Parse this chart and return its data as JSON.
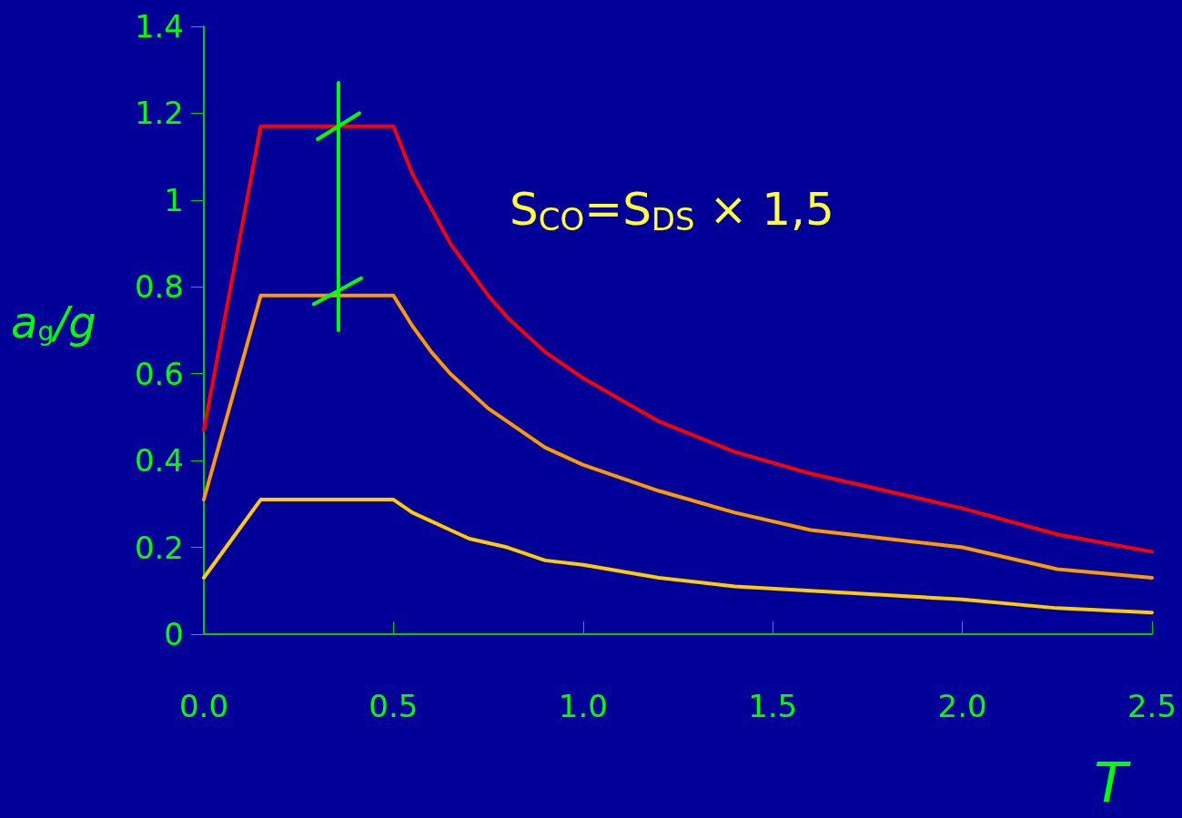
{
  "chart_data": {
    "type": "line",
    "xlabel": "T",
    "ylabel": "a$_{g}$/g",
    "annotations": [
      "S$_{CO}$=S$_{DS}$ × 1,5"
    ],
    "x": [
      0,
      0.15,
      0.5,
      0.55,
      0.6,
      0.65,
      0.7,
      0.75,
      0.8,
      0.9,
      1.0,
      1.2,
      1.4,
      1.6,
      1.8,
      2.0,
      2.25,
      2.5
    ],
    "xlim": [
      0,
      2.5
    ],
    "xticks": [
      {
        "value": 0,
        "label": "0.0"
      },
      {
        "value": 0.5,
        "label": "0.5"
      },
      {
        "value": 1,
        "label": "1.0"
      },
      {
        "value": 1.5,
        "label": "1.5"
      },
      {
        "value": 2,
        "label": "2.0"
      },
      {
        "value": 2.5,
        "label": "2.5"
      }
    ],
    "ylim": [
      0,
      1.4
    ],
    "yticks": [
      0,
      0.2,
      0.4,
      0.6,
      0.8,
      1,
      1.2,
      1.4
    ],
    "grid": false,
    "marker": "none",
    "line_style": "solid",
    "series": [
      {
        "color": "#ff0000",
        "values": [
          0.47,
          1.17,
          1.17,
          1.06,
          0.98,
          0.9,
          0.84,
          0.78,
          0.73,
          0.65,
          0.59,
          0.49,
          0.42,
          0.37,
          0.33,
          0.29,
          0.23,
          0.19
        ]
      },
      {
        "color": "#ff9900",
        "values": [
          0.31,
          0.78,
          0.78,
          0.71,
          0.65,
          0.6,
          0.56,
          0.52,
          0.49,
          0.43,
          0.39,
          0.33,
          0.28,
          0.24,
          0.22,
          0.2,
          0.15,
          0.13
        ]
      },
      {
        "color": "#ffcc00",
        "values": [
          0.13,
          0.31,
          0.31,
          0.28,
          0.26,
          0.24,
          0.22,
          0.21,
          0.2,
          0.17,
          0.16,
          0.13,
          0.11,
          0.1,
          0.09,
          0.08,
          0.06,
          0.05
        ]
      },
      {
        "color": "#00ff00",
        "x": [
          0.355,
          0.355
        ],
        "values": [
          0.7,
          1.27
        ]
      },
      {
        "color": "#00ff00",
        "x": [
          0.3,
          0.41
        ],
        "values": [
          1.14,
          1.2
        ]
      },
      {
        "color": "#00ff00",
        "x": [
          0.29,
          0.415
        ],
        "values": [
          0.76,
          0.82
        ]
      }
    ]
  }
}
